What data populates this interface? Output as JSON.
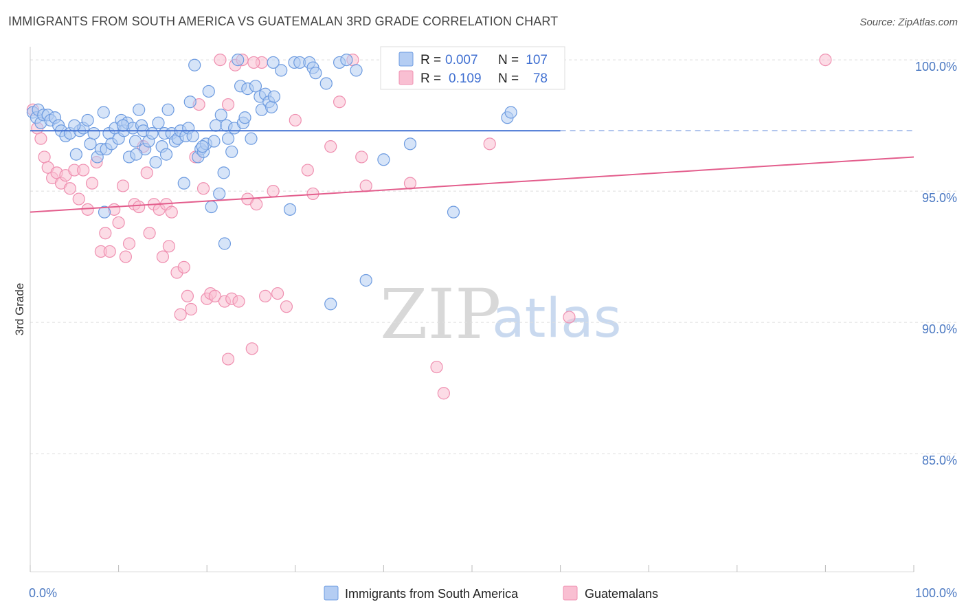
{
  "title": "IMMIGRANTS FROM SOUTH AMERICA VS GUATEMALAN 3RD GRADE CORRELATION CHART",
  "source": "Source: ZipAtlas.com",
  "watermark": {
    "zip": "ZIP",
    "atlas": "atlas"
  },
  "colors": {
    "blue": "#3f6fd1",
    "blue_fill": "#b4cdf3",
    "blue_stroke": "#6d9be0",
    "pink": "#e35d8c",
    "pink_fill": "#f9bfd2",
    "pink_stroke": "#ef8fb0",
    "grid": "#dddddd",
    "tick_text": "#4a78c2"
  },
  "stats": {
    "r_label": "R =",
    "n_label": "N =",
    "blue": {
      "r": "0.007",
      "n": "107"
    },
    "pink": {
      "r": "0.109",
      "n": "78"
    }
  },
  "legend": {
    "blue": "Immigrants from South America",
    "pink": "Guatemalans"
  },
  "chart_data": {
    "type": "scatter",
    "ylabel": "3rd Grade",
    "xlim": [
      0,
      100
    ],
    "ylim": [
      80.5,
      100.5
    ],
    "x_tick_labels": {
      "left": "0.0%",
      "right": "100.0%"
    },
    "y_ticks": [
      {
        "value": 100,
        "label": "100.0%"
      },
      {
        "value": 95,
        "label": "95.0%"
      },
      {
        "value": 90,
        "label": "90.0%"
      },
      {
        "value": 85,
        "label": "85.0%"
      }
    ],
    "grid": "horizontal dashed",
    "legend_position": "bottom",
    "series": [
      {
        "name": "Immigrants from South America",
        "color": "#3f6fd1",
        "trend": {
          "x": [
            0,
            60
          ],
          "y": [
            97.3,
            97.3
          ],
          "dashed_to_x": 100
        },
        "points": [
          [
            0.3,
            98.0
          ],
          [
            0.7,
            97.8
          ],
          [
            0.9,
            98.1
          ],
          [
            1.2,
            97.6
          ],
          [
            1.5,
            97.9
          ],
          [
            2.0,
            97.9
          ],
          [
            2.3,
            97.7
          ],
          [
            2.8,
            97.8
          ],
          [
            3.2,
            97.5
          ],
          [
            3.5,
            97.3
          ],
          [
            4.0,
            97.1
          ],
          [
            4.5,
            97.2
          ],
          [
            5.2,
            96.4
          ],
          [
            5.6,
            97.3
          ],
          [
            6.0,
            97.4
          ],
          [
            6.5,
            97.7
          ],
          [
            6.8,
            96.8
          ],
          [
            7.2,
            97.2
          ],
          [
            7.6,
            96.3
          ],
          [
            8.0,
            96.6
          ],
          [
            8.3,
            98.0
          ],
          [
            8.6,
            96.6
          ],
          [
            8.9,
            97.2
          ],
          [
            9.2,
            96.8
          ],
          [
            9.6,
            97.4
          ],
          [
            10.0,
            97.0
          ],
          [
            10.3,
            97.7
          ],
          [
            10.6,
            97.3
          ],
          [
            11.0,
            97.6
          ],
          [
            11.2,
            96.3
          ],
          [
            11.6,
            97.4
          ],
          [
            11.9,
            96.9
          ],
          [
            12.3,
            98.1
          ],
          [
            12.6,
            97.5
          ],
          [
            12.8,
            97.3
          ],
          [
            13.0,
            96.6
          ],
          [
            13.4,
            96.9
          ],
          [
            13.8,
            97.2
          ],
          [
            14.2,
            96.1
          ],
          [
            14.5,
            97.6
          ],
          [
            14.9,
            96.7
          ],
          [
            15.2,
            97.2
          ],
          [
            15.4,
            96.4
          ],
          [
            15.6,
            98.1
          ],
          [
            16.0,
            97.2
          ],
          [
            16.4,
            96.9
          ],
          [
            16.7,
            97.0
          ],
          [
            17.0,
            97.3
          ],
          [
            17.4,
            95.3
          ],
          [
            17.6,
            97.1
          ],
          [
            17.9,
            97.4
          ],
          [
            18.1,
            98.4
          ],
          [
            18.4,
            97.1
          ],
          [
            18.6,
            99.8
          ],
          [
            19.0,
            96.3
          ],
          [
            19.3,
            96.6
          ],
          [
            19.6,
            96.5
          ],
          [
            19.9,
            96.8
          ],
          [
            20.2,
            98.8
          ],
          [
            20.5,
            94.4
          ],
          [
            20.8,
            96.9
          ],
          [
            21.0,
            97.5
          ],
          [
            21.4,
            94.9
          ],
          [
            21.6,
            97.9
          ],
          [
            21.9,
            95.7
          ],
          [
            22.2,
            97.5
          ],
          [
            22.4,
            97.0
          ],
          [
            22.8,
            96.5
          ],
          [
            23.1,
            97.4
          ],
          [
            23.5,
            100.0
          ],
          [
            23.8,
            99.0
          ],
          [
            24.1,
            97.6
          ],
          [
            24.3,
            97.8
          ],
          [
            24.6,
            98.9
          ],
          [
            25.0,
            97.0
          ],
          [
            25.5,
            99.0
          ],
          [
            26.0,
            98.6
          ],
          [
            26.2,
            98.1
          ],
          [
            26.6,
            98.7
          ],
          [
            27.0,
            98.4
          ],
          [
            27.3,
            98.2
          ],
          [
            27.6,
            98.6
          ],
          [
            28.4,
            99.6
          ],
          [
            29.4,
            94.3
          ],
          [
            29.9,
            99.9
          ],
          [
            30.5,
            99.9
          ],
          [
            31.6,
            99.9
          ],
          [
            32.0,
            99.7
          ],
          [
            32.3,
            99.5
          ],
          [
            33.5,
            99.1
          ],
          [
            34.0,
            90.7
          ],
          [
            35.0,
            99.9
          ],
          [
            35.8,
            100.0
          ],
          [
            36.9,
            99.6
          ],
          [
            38.0,
            91.6
          ],
          [
            40.0,
            96.2
          ],
          [
            43.0,
            96.8
          ],
          [
            47.9,
            94.2
          ],
          [
            54.0,
            97.8
          ],
          [
            54.4,
            98.0
          ],
          [
            22.0,
            93.0
          ],
          [
            27.5,
            99.9
          ],
          [
            8.4,
            94.2
          ],
          [
            19.5,
            96.7
          ],
          [
            10.5,
            97.5
          ],
          [
            12.0,
            96.4
          ],
          [
            5.0,
            97.5
          ]
        ]
      },
      {
        "name": "Guatemalans",
        "color": "#e35d8c",
        "trend": {
          "x": [
            0,
            100
          ],
          "y": [
            94.2,
            96.3
          ]
        },
        "points": [
          [
            0.3,
            98.1
          ],
          [
            0.8,
            97.4
          ],
          [
            1.2,
            97.0
          ],
          [
            1.6,
            96.3
          ],
          [
            2.0,
            95.9
          ],
          [
            2.5,
            95.5
          ],
          [
            3.0,
            95.7
          ],
          [
            3.5,
            95.3
          ],
          [
            4.0,
            95.6
          ],
          [
            4.5,
            95.1
          ],
          [
            5.0,
            95.8
          ],
          [
            5.5,
            94.7
          ],
          [
            6.0,
            95.8
          ],
          [
            6.5,
            94.3
          ],
          [
            7.0,
            95.3
          ],
          [
            7.5,
            96.1
          ],
          [
            8.0,
            92.7
          ],
          [
            8.5,
            93.4
          ],
          [
            9.0,
            92.7
          ],
          [
            9.5,
            94.3
          ],
          [
            10.0,
            93.8
          ],
          [
            10.5,
            95.2
          ],
          [
            10.8,
            92.5
          ],
          [
            11.2,
            93.0
          ],
          [
            11.8,
            94.5
          ],
          [
            12.3,
            94.4
          ],
          [
            12.8,
            96.7
          ],
          [
            13.2,
            95.7
          ],
          [
            13.5,
            93.4
          ],
          [
            14.0,
            94.5
          ],
          [
            14.6,
            94.3
          ],
          [
            15.0,
            92.5
          ],
          [
            15.4,
            94.5
          ],
          [
            15.7,
            92.9
          ],
          [
            16.0,
            94.2
          ],
          [
            16.6,
            91.9
          ],
          [
            17.0,
            90.3
          ],
          [
            17.4,
            92.1
          ],
          [
            17.8,
            91.0
          ],
          [
            18.2,
            90.5
          ],
          [
            18.7,
            96.3
          ],
          [
            19.1,
            98.3
          ],
          [
            19.6,
            95.1
          ],
          [
            20.0,
            90.9
          ],
          [
            20.4,
            91.1
          ],
          [
            20.9,
            91.0
          ],
          [
            21.5,
            100.0
          ],
          [
            22.0,
            90.8
          ],
          [
            22.4,
            98.3
          ],
          [
            22.8,
            90.9
          ],
          [
            23.2,
            99.8
          ],
          [
            23.6,
            90.8
          ],
          [
            24.0,
            100.0
          ],
          [
            24.6,
            94.7
          ],
          [
            25.1,
            89.0
          ],
          [
            25.6,
            94.5
          ],
          [
            26.2,
            99.9
          ],
          [
            26.6,
            91.0
          ],
          [
            27.5,
            95.0
          ],
          [
            28.0,
            91.1
          ],
          [
            29.0,
            90.6
          ],
          [
            30.0,
            97.7
          ],
          [
            31.4,
            95.8
          ],
          [
            32.0,
            94.9
          ],
          [
            34.0,
            96.7
          ],
          [
            35.0,
            98.4
          ],
          [
            36.5,
            100.0
          ],
          [
            37.5,
            96.3
          ],
          [
            38.0,
            95.2
          ],
          [
            43.0,
            95.3
          ],
          [
            46.0,
            88.3
          ],
          [
            52.0,
            96.8
          ],
          [
            59.0,
            100.0
          ],
          [
            61.0,
            90.2
          ],
          [
            90.0,
            100.0
          ],
          [
            46.8,
            87.3
          ],
          [
            22.4,
            88.6
          ],
          [
            25.3,
            99.9
          ]
        ]
      }
    ]
  }
}
